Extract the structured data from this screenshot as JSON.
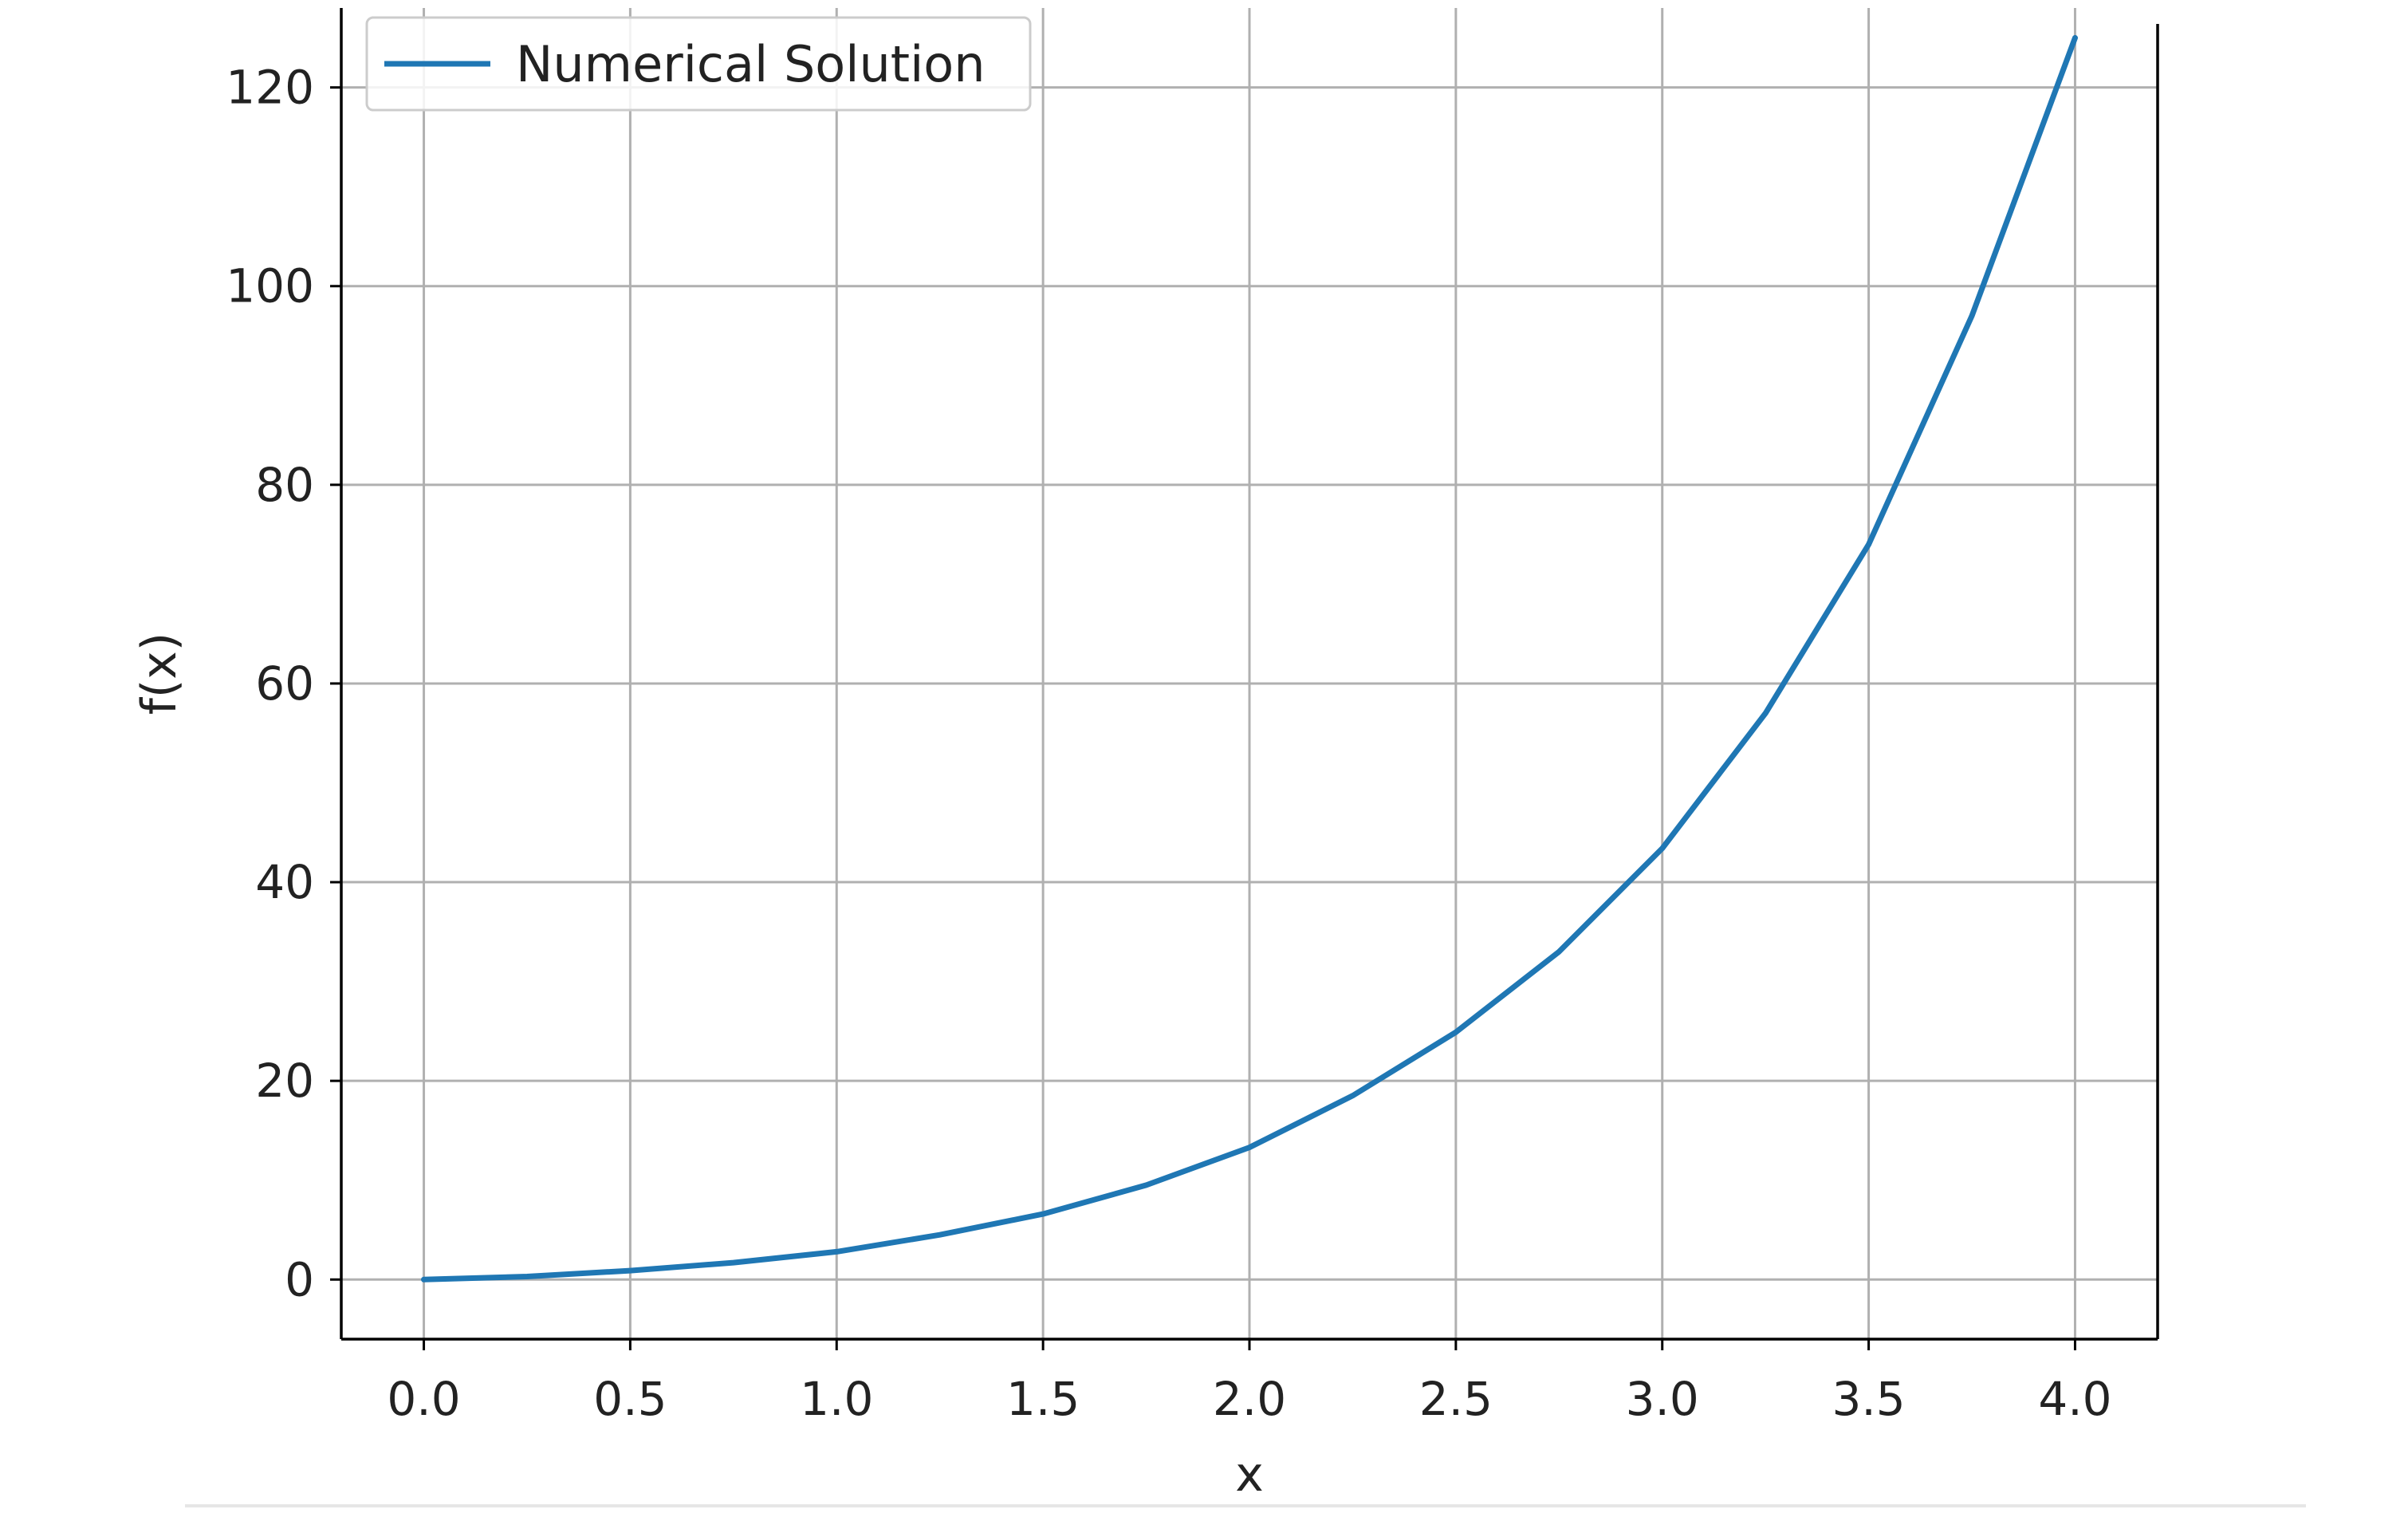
{
  "chart_data": {
    "type": "line",
    "title": "",
    "xlabel": "x",
    "ylabel": "f(x)",
    "xlim": [
      -0.2,
      4.2
    ],
    "ylim": [
      -6,
      128
    ],
    "xticks": [
      0.0,
      0.5,
      1.0,
      1.5,
      2.0,
      2.5,
      3.0,
      3.5,
      4.0
    ],
    "xtick_labels": [
      "0.0",
      "0.5",
      "1.0",
      "1.5",
      "2.0",
      "2.5",
      "3.0",
      "3.5",
      "4.0"
    ],
    "yticks": [
      0,
      20,
      40,
      60,
      80,
      100,
      120
    ],
    "ytick_labels": [
      "0",
      "20",
      "40",
      "60",
      "80",
      "100",
      "120"
    ],
    "grid": true,
    "legend_position": "top-left",
    "series": [
      {
        "name": "Numerical Solution",
        "color": "#1f77b4",
        "x": [
          0.0,
          0.25,
          0.5,
          0.75,
          1.0,
          1.25,
          1.5,
          1.75,
          2.0,
          2.25,
          2.5,
          2.75,
          3.0,
          3.25,
          3.5,
          3.75,
          4.0
        ],
        "y": [
          0.0,
          0.3,
          0.9,
          1.7,
          2.8,
          4.5,
          6.6,
          9.5,
          13.3,
          18.5,
          24.9,
          33.0,
          43.4,
          57.0,
          74.0,
          97.0,
          125.0
        ]
      }
    ]
  }
}
